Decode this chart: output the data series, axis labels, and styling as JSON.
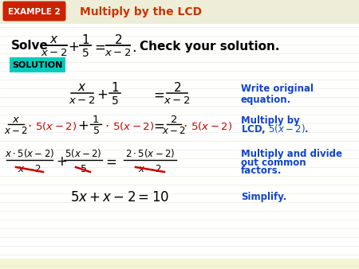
{
  "background_color": "#f5f5d5",
  "header_bg": "#eeeed8",
  "example_box_bg": "#cc2200",
  "example_box_text": "EXAMPLE 2",
  "example_box_text_color": "#ffffff",
  "header_title": "Multiply by the LCD",
  "header_title_color": "#cc3300",
  "solution_box_bg": "#00ccbb",
  "solution_box_text": "SOLUTION",
  "annotation_color": "#1144cc",
  "highlight_color": "#cc0000",
  "math_black": "#111111",
  "stripe_color": "#e8e8c4"
}
